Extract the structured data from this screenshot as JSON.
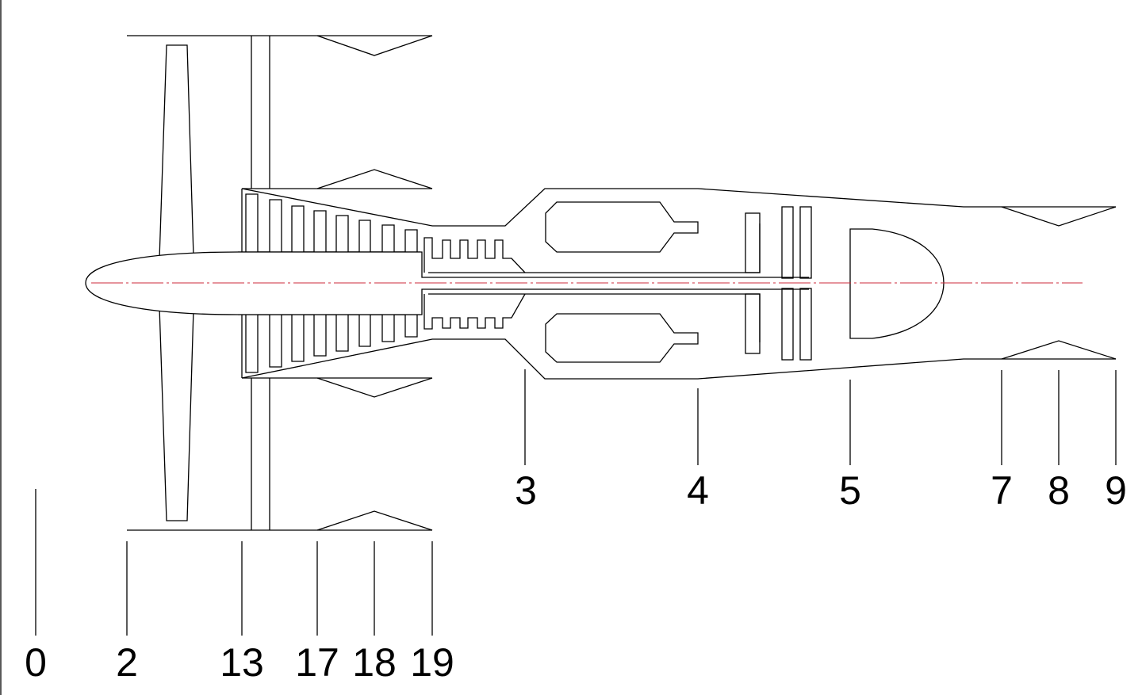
{
  "diagram": {
    "stations": {
      "s0": "0",
      "s2": "2",
      "s13": "13",
      "s17": "17",
      "s18": "18",
      "s19": "19",
      "s3": "3",
      "s4": "4",
      "s5": "5",
      "s7": "7",
      "s8": "8",
      "s9": "9"
    },
    "colors": {
      "line": "#000000",
      "centerline": "#cc2b3b",
      "background": "#ffffff"
    }
  }
}
